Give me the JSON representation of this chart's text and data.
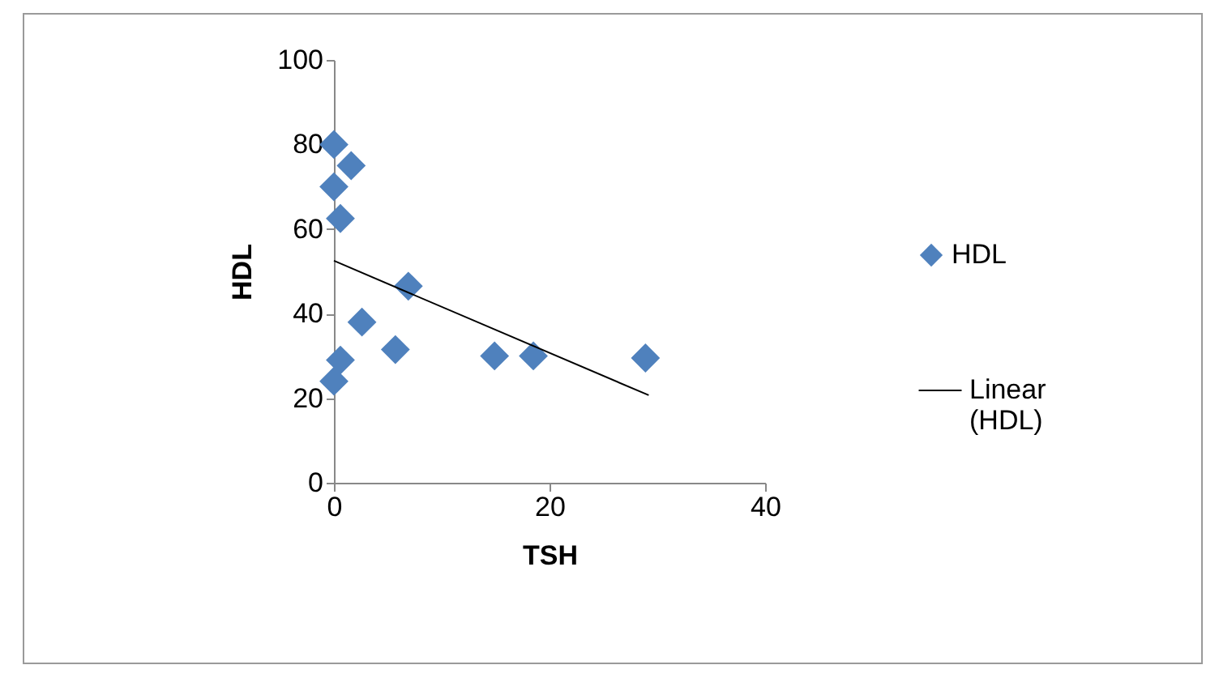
{
  "chart_data": {
    "type": "scatter",
    "xlabel": "TSH",
    "ylabel": "HDL",
    "xlim": [
      0,
      40
    ],
    "xticks": [
      0,
      20,
      40
    ],
    "ylim": [
      0,
      100
    ],
    "yticks": [
      0,
      20,
      40,
      60,
      80,
      100
    ],
    "grid": false,
    "legend": "right",
    "series": [
      {
        "name": "HDL",
        "marker": "diamond",
        "color": "#4f81bd",
        "x": [
          0,
          1.6,
          0,
          0.6,
          6.9,
          2.6,
          5.7,
          0.6,
          0,
          14.9,
          18.5,
          28.9
        ],
        "values": [
          80,
          75,
          70,
          62.5,
          46.5,
          38,
          31.5,
          29,
          24,
          30,
          30,
          29.5
        ]
      },
      {
        "name": "Linear (HDL)",
        "type": "line",
        "color": "#000000",
        "line_style": "solid",
        "x": [
          0,
          29.2
        ],
        "values": [
          52.5,
          20.7
        ]
      }
    ]
  }
}
